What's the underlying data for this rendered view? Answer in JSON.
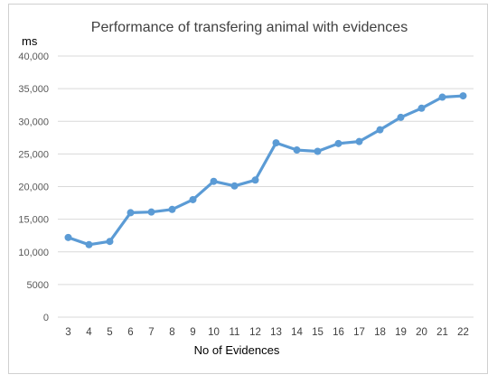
{
  "chart_data": {
    "type": "line",
    "title": "Performance of transfering animal with evidences",
    "xlabel": "No of Evidences",
    "ylabel": "ms",
    "categories": [
      "3",
      "4",
      "5",
      "6",
      "7",
      "8",
      "9",
      "10",
      "11",
      "12",
      "13",
      "14",
      "15",
      "16",
      "17",
      "18",
      "19",
      "20",
      "21",
      "22"
    ],
    "series": [
      {
        "values": [
          12200,
          11100,
          11600,
          16000,
          16100,
          16500,
          18000,
          20800,
          20100,
          21000,
          26700,
          25600,
          25400,
          26600,
          26900,
          28700,
          30600,
          32000,
          33700,
          33900
        ],
        "color": "#5b9bd5"
      }
    ],
    "ylim": [
      0,
      40000
    ],
    "yticks": [
      0,
      5000,
      10000,
      15000,
      20000,
      25000,
      30000,
      35000,
      40000
    ],
    "ytick_labels": [
      "0",
      "5000",
      "10,000",
      "15,000",
      "20,000",
      "25,000",
      "30,000",
      "35,000",
      "40,000"
    ],
    "grid": true,
    "legend": "none"
  }
}
